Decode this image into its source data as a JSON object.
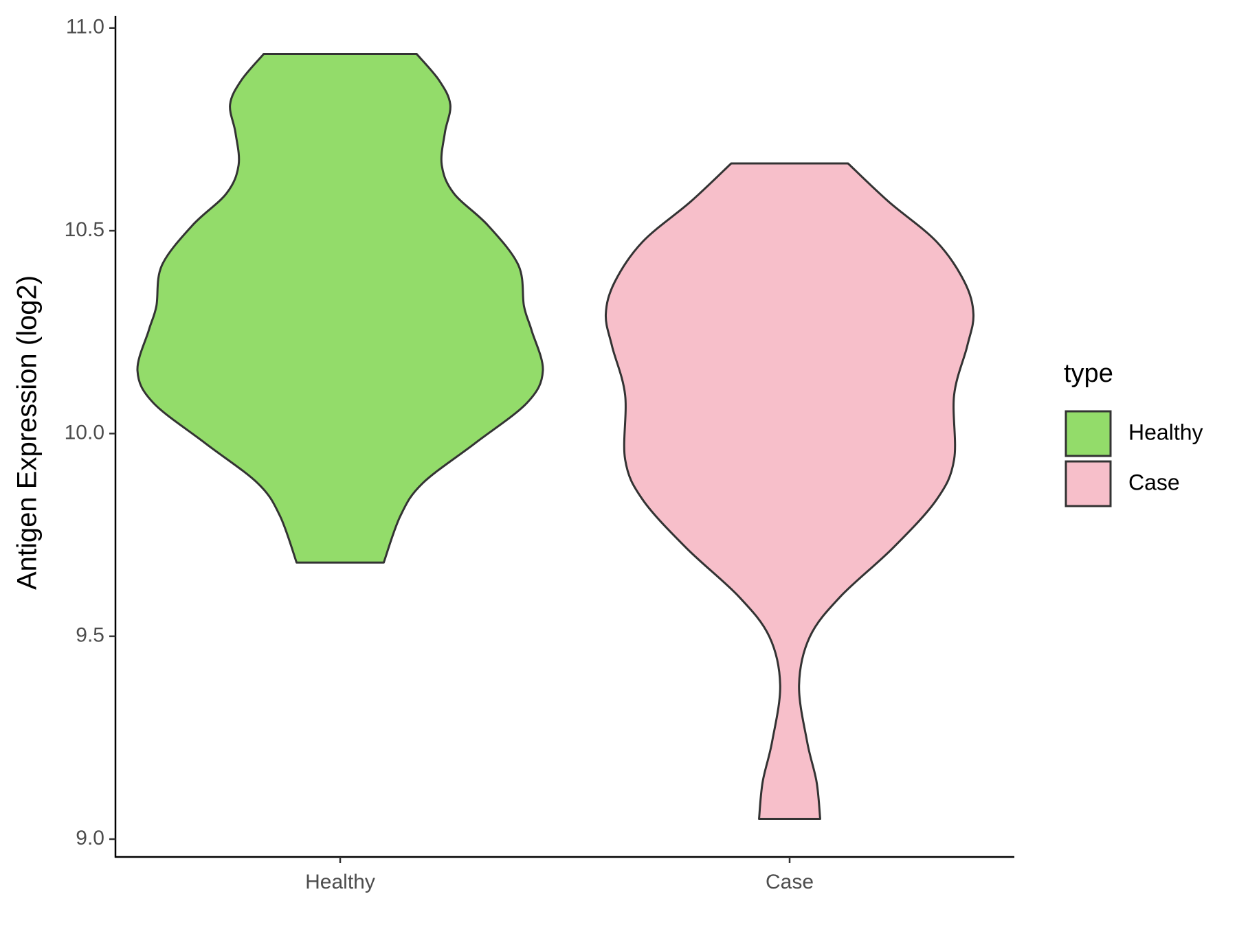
{
  "chart_data": {
    "type": "violin",
    "y_label": "Antigen Expression (log2)",
    "categories": [
      "Healthy",
      "Case"
    ],
    "ylim": [
      8.956,
      11.03
    ],
    "yticks": [
      {
        "value": 9.0,
        "label": "9.0"
      },
      {
        "value": 9.5,
        "label": "9.5"
      },
      {
        "value": 10.0,
        "label": "10.0"
      },
      {
        "value": 10.5,
        "label": "10.5"
      },
      {
        "value": 11.0,
        "label": "11.0"
      }
    ],
    "grid": false,
    "legend_title": "type",
    "legend_position": "right",
    "series": [
      {
        "name": "Healthy",
        "color": "#93dc6a",
        "y": [
          10.936,
          10.871,
          10.811,
          10.742,
          10.662,
          10.592,
          10.513,
          10.414,
          10.314,
          10.254,
          10.155,
          10.076,
          9.976,
          9.877,
          9.797,
          9.682
        ],
        "density": [
          0.17,
          0.22,
          0.245,
          0.233,
          0.226,
          0.253,
          0.329,
          0.397,
          0.409,
          0.426,
          0.451,
          0.416,
          0.3,
          0.183,
          0.134,
          0.097
        ]
      },
      {
        "name": "Case",
        "color": "#f7bfca",
        "y": [
          10.666,
          10.572,
          10.473,
          10.374,
          10.294,
          10.215,
          10.095,
          9.936,
          9.837,
          9.718,
          9.598,
          9.499,
          9.38,
          9.24,
          9.141,
          9.05
        ],
        "density": [
          0.13,
          0.22,
          0.327,
          0.389,
          0.409,
          0.395,
          0.366,
          0.366,
          0.327,
          0.23,
          0.113,
          0.045,
          0.021,
          0.039,
          0.06,
          0.068
        ]
      }
    ]
  }
}
